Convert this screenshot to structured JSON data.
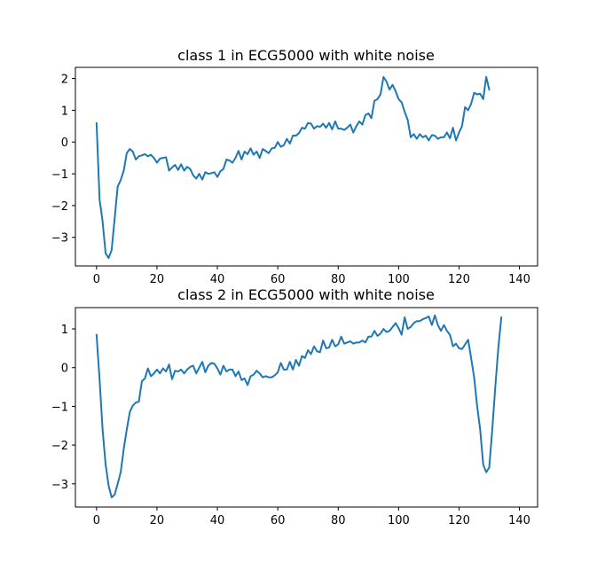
{
  "chart_data": [
    {
      "type": "line",
      "title": "class 1 in ECG5000 with white noise",
      "xlabel": "",
      "ylabel": "",
      "xlim": [
        -7,
        146
      ],
      "ylim": [
        -3.9,
        2.35
      ],
      "xticks": [
        0,
        20,
        40,
        60,
        80,
        100,
        120,
        140
      ],
      "yticks": [
        -3,
        -2,
        -1,
        0,
        1,
        2
      ],
      "grid": false,
      "color": "#1f77b4",
      "x_start": 0,
      "x_step": 1,
      "values": [
        0.6,
        -1.8,
        -2.5,
        -3.5,
        -3.65,
        -3.4,
        -2.4,
        -1.4,
        -1.2,
        -0.9,
        -0.35,
        -0.22,
        -0.3,
        -0.55,
        -0.45,
        -0.42,
        -0.38,
        -0.45,
        -0.4,
        -0.5,
        -0.65,
        -0.52,
        -0.5,
        -0.48,
        -0.9,
        -0.8,
        -0.72,
        -0.88,
        -0.7,
        -0.9,
        -0.78,
        -0.85,
        -1.05,
        -1.15,
        -1.0,
        -1.18,
        -0.95,
        -1.0,
        -0.98,
        -0.95,
        -1.1,
        -0.92,
        -0.85,
        -0.55,
        -0.58,
        -0.65,
        -0.5,
        -0.28,
        -0.55,
        -0.3,
        -0.38,
        -0.2,
        -0.4,
        -0.3,
        -0.5,
        -0.22,
        -0.28,
        -0.35,
        -0.2,
        -0.18,
        0.0,
        -0.15,
        -0.1,
        0.1,
        -0.05,
        0.2,
        0.2,
        0.28,
        0.45,
        0.42,
        0.6,
        0.58,
        0.42,
        0.5,
        0.48,
        0.58,
        0.45,
        0.6,
        0.4,
        0.65,
        0.42,
        0.42,
        0.38,
        0.45,
        0.55,
        0.3,
        0.5,
        0.65,
        0.55,
        0.85,
        0.9,
        0.75,
        1.3,
        1.35,
        1.5,
        2.05,
        1.9,
        1.65,
        1.8,
        1.6,
        1.35,
        1.25,
        0.95,
        0.7,
        0.15,
        0.25,
        0.1,
        0.25,
        0.15,
        0.2,
        0.05,
        0.22,
        0.2,
        0.1,
        0.15,
        0.15,
        0.3,
        0.12,
        0.45,
        0.05,
        0.3,
        0.5,
        1.1,
        1.0,
        1.2,
        1.55,
        1.5,
        1.52,
        1.35,
        2.05,
        1.65
      ]
    },
    {
      "type": "line",
      "title": "class 2 in ECG5000 with white noise",
      "xlabel": "",
      "ylabel": "",
      "xlim": [
        -7,
        146
      ],
      "ylim": [
        -3.6,
        1.55
      ],
      "xticks": [
        0,
        20,
        40,
        60,
        80,
        100,
        120,
        140
      ],
      "yticks": [
        -3,
        -2,
        -1,
        0,
        1
      ],
      "grid": false,
      "color": "#1f77b4",
      "x_start": 0,
      "x_step": 1,
      "values": [
        0.85,
        -0.3,
        -1.6,
        -2.5,
        -3.05,
        -3.35,
        -3.28,
        -3.0,
        -2.7,
        -2.1,
        -1.6,
        -1.15,
        -0.98,
        -0.9,
        -0.88,
        -0.35,
        -0.28,
        -0.02,
        -0.22,
        -0.15,
        -0.05,
        -0.15,
        -0.02,
        -0.1,
        0.08,
        -0.3,
        -0.08,
        -0.1,
        -0.05,
        -0.15,
        -0.05,
        0.02,
        0.05,
        -0.15,
        0.0,
        0.15,
        -0.12,
        0.05,
        0.12,
        0.1,
        -0.02,
        -0.18,
        0.05,
        -0.1,
        -0.05,
        -0.05,
        -0.22,
        -0.1,
        -0.32,
        -0.28,
        -0.45,
        -0.22,
        -0.18,
        -0.08,
        -0.15,
        -0.25,
        -0.22,
        -0.25,
        -0.25,
        -0.2,
        -0.12,
        0.12,
        -0.05,
        -0.05,
        0.15,
        -0.05,
        0.2,
        0.05,
        0.3,
        0.25,
        0.45,
        0.35,
        0.55,
        0.42,
        0.4,
        0.7,
        0.5,
        0.52,
        0.72,
        0.55,
        0.6,
        0.8,
        0.62,
        0.65,
        0.68,
        0.62,
        0.65,
        0.65,
        0.7,
        0.65,
        0.8,
        0.8,
        0.95,
        0.82,
        0.88,
        1.0,
        0.92,
        0.95,
        1.05,
        1.15,
        1.02,
        0.85,
        1.3,
        1.0,
        1.05,
        1.15,
        1.2,
        1.2,
        1.25,
        1.28,
        1.32,
        1.1,
        1.35,
        1.1,
        0.95,
        1.1,
        0.95,
        0.85,
        0.55,
        0.62,
        0.5,
        0.48,
        0.6,
        0.72,
        0.25,
        -0.25,
        -1.0,
        -1.6,
        -2.5,
        -2.7,
        -2.58,
        -1.6,
        -0.5,
        0.5,
        1.3
      ]
    }
  ]
}
